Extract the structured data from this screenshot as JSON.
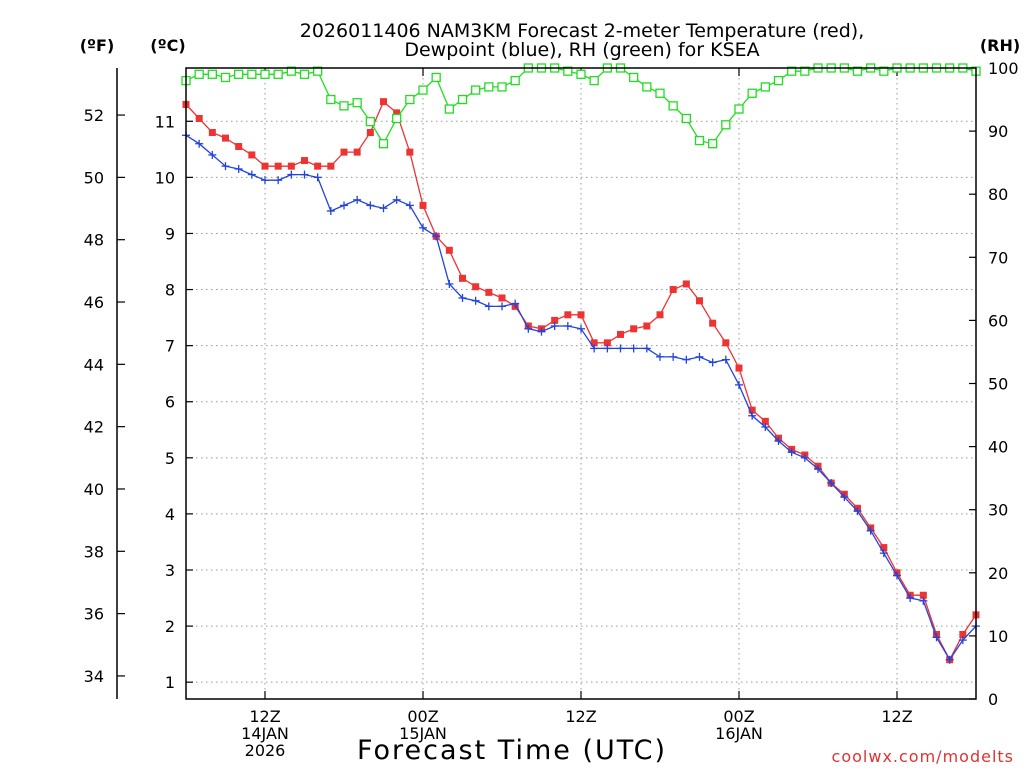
{
  "chart_data": {
    "type": "line",
    "title_line1": "2026011406 NAM3KM Forecast 2-meter Temperature (red),",
    "title_line2": "Dewpoint (blue), RH (green) for KSEA",
    "xlabel": "Forecast Time (UTC)",
    "watermark": "coolwx.com/modelts",
    "units": {
      "fahrenheit": "(ºF)",
      "celsius": "(ºC)",
      "rh": "(RH)"
    },
    "x_hours_range": [
      0,
      60
    ],
    "ylim_c": [
      0.7,
      11.95
    ],
    "ylim_rh": [
      0,
      100
    ],
    "yticks_c": [
      1,
      2,
      3,
      4,
      5,
      6,
      7,
      8,
      9,
      10,
      11
    ],
    "yticks_f": [
      34,
      36,
      38,
      40,
      42,
      44,
      46,
      48,
      50,
      52
    ],
    "yticks_rh": [
      0,
      10,
      20,
      30,
      40,
      50,
      60,
      70,
      80,
      90,
      100
    ],
    "xticks": [
      {
        "hour": 6,
        "labels": [
          "12Z",
          "14JAN",
          "2026"
        ]
      },
      {
        "hour": 18,
        "labels": [
          "00Z",
          "15JAN"
        ]
      },
      {
        "hour": 30,
        "labels": [
          "12Z"
        ]
      },
      {
        "hour": 42,
        "labels": [
          "00Z",
          "16JAN"
        ]
      },
      {
        "hour": 54,
        "labels": [
          "12Z"
        ]
      }
    ],
    "series": [
      {
        "name": "Temperature (red)",
        "color": "#ee3333",
        "marker": "filled-square",
        "values": [
          11.3,
          11.05,
          10.8,
          10.7,
          10.55,
          10.4,
          10.2,
          10.2,
          10.2,
          10.3,
          10.2,
          10.2,
          10.45,
          10.45,
          10.8,
          11.35,
          11.15,
          10.45,
          9.5,
          8.95,
          8.7,
          8.2,
          8.05,
          7.95,
          7.85,
          7.7,
          7.35,
          7.3,
          7.45,
          7.55,
          7.55,
          7.05,
          7.05,
          7.2,
          7.3,
          7.35,
          7.55,
          8.0,
          8.1,
          7.8,
          7.4,
          7.05,
          6.6,
          5.85,
          5.65,
          5.35,
          5.15,
          5.05,
          4.85,
          4.55,
          4.35,
          4.1,
          3.75,
          3.4,
          2.95,
          2.55,
          2.55,
          1.85,
          1.4,
          1.85,
          2.2
        ]
      },
      {
        "name": "Dewpoint (blue)",
        "color": "#2244dd",
        "marker": "plus",
        "values": [
          10.75,
          10.6,
          10.4,
          10.2,
          10.15,
          10.05,
          9.95,
          9.95,
          10.05,
          10.05,
          10.0,
          9.4,
          9.5,
          9.6,
          9.5,
          9.45,
          9.6,
          9.5,
          9.1,
          8.95,
          8.1,
          7.85,
          7.8,
          7.7,
          7.7,
          7.75,
          7.3,
          7.25,
          7.35,
          7.35,
          7.3,
          6.95,
          6.95,
          6.95,
          6.95,
          6.95,
          6.8,
          6.8,
          6.75,
          6.8,
          6.7,
          6.75,
          6.3,
          5.75,
          5.55,
          5.3,
          5.1,
          5.0,
          4.8,
          4.55,
          4.3,
          4.05,
          3.7,
          3.3,
          2.9,
          2.5,
          2.45,
          1.8,
          1.4,
          1.75,
          2.0
        ]
      },
      {
        "name": "RH (green)",
        "color": "#22dd22",
        "marker": "open-square",
        "values": [
          98,
          99,
          99,
          98.5,
          99,
          99,
          99,
          99,
          99.5,
          99,
          99.5,
          95,
          94,
          94.5,
          91.5,
          88,
          92,
          95,
          96.5,
          98.5,
          93.5,
          95,
          96.5,
          97,
          97,
          98,
          100,
          100,
          100,
          99.5,
          99,
          98,
          100,
          100,
          98.5,
          97,
          96,
          94,
          92,
          88.5,
          88,
          91,
          93.5,
          96,
          97,
          98,
          99.5,
          99.5,
          100,
          100,
          100,
          99.5,
          100,
          99.5,
          100,
          100,
          100,
          100,
          100,
          100,
          99.5
        ]
      }
    ]
  }
}
